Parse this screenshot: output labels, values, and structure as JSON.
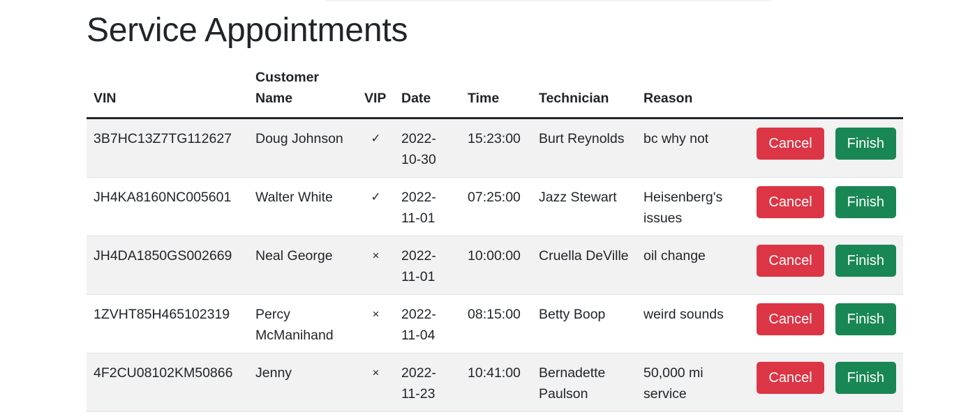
{
  "page": {
    "title": "Service Appointments"
  },
  "table": {
    "headers": {
      "vin": "VIN",
      "customer_name": "Customer Name",
      "vip": "VIP",
      "date": "Date",
      "time": "Time",
      "technician": "Technician",
      "reason": "Reason"
    },
    "rows": [
      {
        "vin": "3B7HC13Z7TG112627",
        "customer": "Doug Johnson",
        "vip": "✓",
        "date": "2022-10-30",
        "time": "15:23:00",
        "technician": "Burt Reynolds",
        "reason": "bc why not",
        "cancel_label": "Cancel",
        "finish_label": "Finish"
      },
      {
        "vin": "JH4KA8160NC005601",
        "customer": "Walter White",
        "vip": "✓",
        "date": "2022-11-01",
        "time": "07:25:00",
        "technician": "Jazz Stewart",
        "reason": "Heisenberg's issues",
        "cancel_label": "Cancel",
        "finish_label": "Finish"
      },
      {
        "vin": "JH4DA1850GS002669",
        "customer": "Neal George",
        "vip": "×",
        "date": "2022-11-01",
        "time": "10:00:00",
        "technician": "Cruella DeVille",
        "reason": "oil change",
        "cancel_label": "Cancel",
        "finish_label": "Finish"
      },
      {
        "vin": "1ZVHT85H465102319",
        "customer": "Percy McManihand",
        "vip": "×",
        "date": "2022-11-04",
        "time": "08:15:00",
        "technician": "Betty Boop",
        "reason": "weird sounds",
        "cancel_label": "Cancel",
        "finish_label": "Finish"
      },
      {
        "vin": "4F2CU08102KM50866",
        "customer": "Jenny",
        "vip": "×",
        "date": "2022-11-23",
        "time": "10:41:00",
        "technician": "Bernadette Paulson",
        "reason": "50,000 mi service",
        "cancel_label": "Cancel",
        "finish_label": "Finish"
      }
    ]
  },
  "colors": {
    "cancel": "#dc3545",
    "finish": "#198754",
    "stripe": "#f2f2f2"
  }
}
